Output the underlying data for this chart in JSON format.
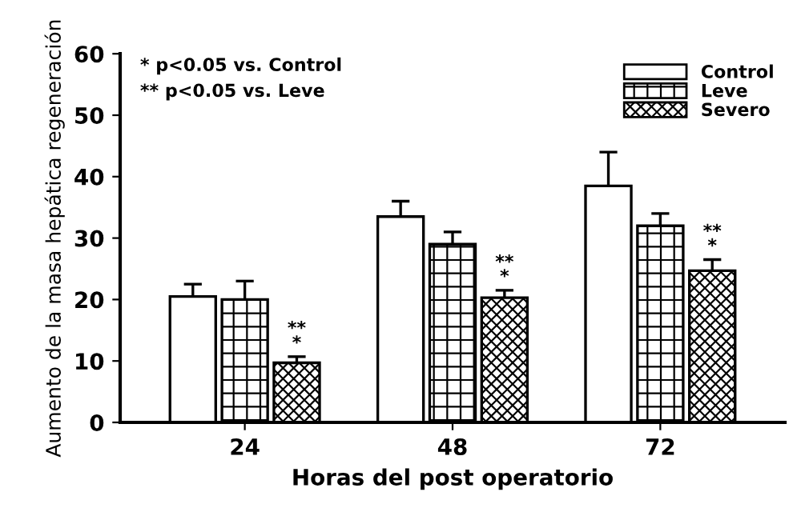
{
  "chart_data": {
    "type": "bar",
    "ylabel": "Aumento de la masa hepática regeneración",
    "xlabel": "Horas del post operatorio",
    "categories": [
      "24",
      "48",
      "72"
    ],
    "series": [
      {
        "name": "Control",
        "color": "#ffffff",
        "values": [
          20.5,
          33.5,
          38.5
        ],
        "errors": [
          2,
          2.5,
          5.5
        ]
      },
      {
        "name": "Leve",
        "color": "#000000",
        "values": [
          20,
          29,
          32
        ],
        "errors": [
          3,
          2,
          2
        ]
      },
      {
        "name": "Severo",
        "color": "#000000",
        "values": [
          9.7,
          20.3,
          24.7
        ],
        "errors": [
          1,
          1.2,
          1.8
        ],
        "value_labels": [
          "**\n*",
          "**\n*",
          "**\n*"
        ]
      }
    ],
    "ylim": [
      0,
      60
    ],
    "yticks": [
      0,
      10,
      20,
      30,
      40,
      50,
      60
    ],
    "annotations": [
      "* p<0.05 vs. Control",
      "** p<0.05 vs. Leve"
    ],
    "legend": "top right",
    "grid": false
  }
}
